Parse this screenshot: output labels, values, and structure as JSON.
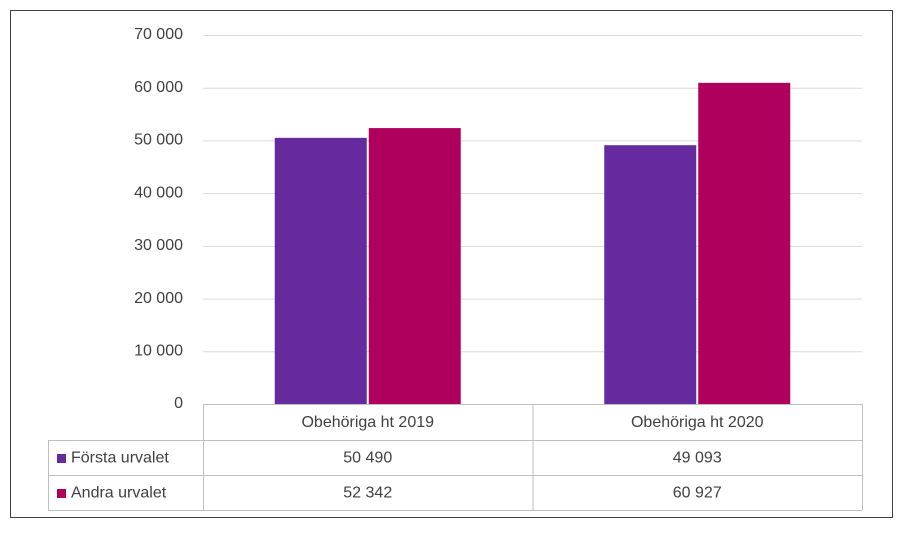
{
  "chart_data": {
    "type": "bar",
    "categories": [
      "Obehöriga ht 2019",
      "Obehöriga ht 2020"
    ],
    "series": [
      {
        "name": "Första urvalet",
        "color": "#662a9f",
        "values": [
          50490,
          49093
        ],
        "value_labels": [
          "50 490",
          "49 093"
        ]
      },
      {
        "name": "Andra urvalet",
        "color": "#b0005e",
        "values": [
          52342,
          60927
        ],
        "value_labels": [
          "52 342",
          "60 927"
        ]
      }
    ],
    "ylim": [
      0,
      70000
    ],
    "yticks": [
      {
        "value": 0,
        "label": "0"
      },
      {
        "value": 10000,
        "label": "10 000"
      },
      {
        "value": 20000,
        "label": "20 000"
      },
      {
        "value": 30000,
        "label": "30 000"
      },
      {
        "value": 40000,
        "label": "40 000"
      },
      {
        "value": 50000,
        "label": "50 000"
      },
      {
        "value": 60000,
        "label": "60 000"
      },
      {
        "value": 70000,
        "label": "70 000"
      }
    ],
    "grid": true
  }
}
